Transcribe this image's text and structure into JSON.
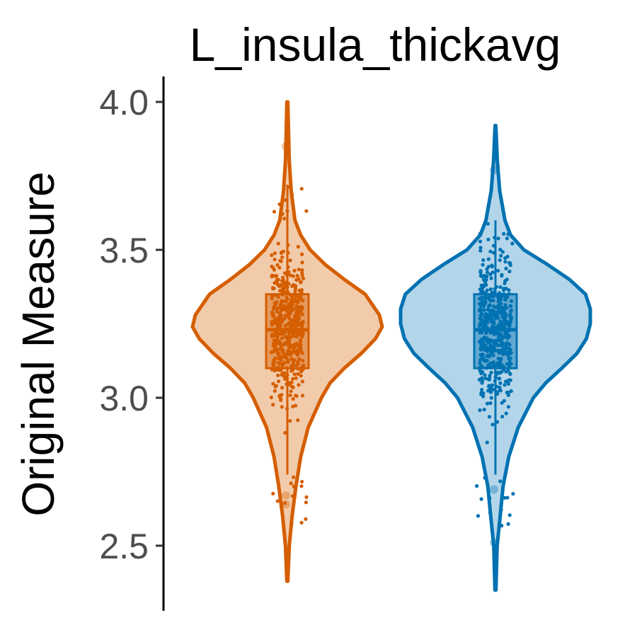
{
  "chart_data": {
    "type": "violin",
    "title": "L_insula_thickavg",
    "xlabel": "",
    "ylabel": "Original Measure",
    "ylim": [
      2.35,
      4.05
    ],
    "yticks": [
      2.5,
      3.0,
      3.5,
      4.0
    ],
    "ytick_labels": [
      "2.5",
      "3.0",
      "3.5",
      "4.0"
    ],
    "grid": false,
    "legend": "none",
    "series": [
      {
        "color": "#d55e00",
        "fill": "#f2cbaa",
        "min": 2.38,
        "max": 4.0,
        "q1": 3.1,
        "median": 3.23,
        "q3": 3.35,
        "whisker_low": 2.74,
        "whisker_high": 3.72,
        "outliers": [
          3.85,
          2.67,
          2.64
        ],
        "density": [
          [
            2.38,
            0.005
          ],
          [
            2.5,
            0.02
          ],
          [
            2.6,
            0.05
          ],
          [
            2.7,
            0.09
          ],
          [
            2.8,
            0.14
          ],
          [
            2.9,
            0.22
          ],
          [
            3.0,
            0.36
          ],
          [
            3.05,
            0.45
          ],
          [
            3.1,
            0.6
          ],
          [
            3.15,
            0.78
          ],
          [
            3.2,
            0.93
          ],
          [
            3.24,
            1.0
          ],
          [
            3.28,
            0.97
          ],
          [
            3.35,
            0.82
          ],
          [
            3.4,
            0.6
          ],
          [
            3.45,
            0.4
          ],
          [
            3.5,
            0.24
          ],
          [
            3.55,
            0.14
          ],
          [
            3.6,
            0.08
          ],
          [
            3.7,
            0.04
          ],
          [
            3.8,
            0.02
          ],
          [
            3.9,
            0.012
          ],
          [
            4.0,
            0.005
          ]
        ]
      },
      {
        "color": "#0072b2",
        "fill": "#b3d5ea",
        "min": 2.35,
        "max": 3.92,
        "q1": 3.1,
        "median": 3.23,
        "q3": 3.35,
        "whisker_low": 2.74,
        "whisker_high": 3.6,
        "outliers": [
          3.77,
          2.69,
          2.51
        ],
        "density": [
          [
            2.35,
            0.005
          ],
          [
            2.5,
            0.018
          ],
          [
            2.6,
            0.05
          ],
          [
            2.7,
            0.08
          ],
          [
            2.8,
            0.14
          ],
          [
            2.9,
            0.24
          ],
          [
            3.0,
            0.4
          ],
          [
            3.05,
            0.53
          ],
          [
            3.1,
            0.7
          ],
          [
            3.15,
            0.86
          ],
          [
            3.2,
            0.96
          ],
          [
            3.25,
            1.0
          ],
          [
            3.3,
            1.0
          ],
          [
            3.35,
            0.95
          ],
          [
            3.4,
            0.78
          ],
          [
            3.45,
            0.55
          ],
          [
            3.5,
            0.3
          ],
          [
            3.55,
            0.16
          ],
          [
            3.6,
            0.1
          ],
          [
            3.7,
            0.045
          ],
          [
            3.8,
            0.02
          ],
          [
            3.92,
            0.004
          ]
        ]
      }
    ]
  }
}
